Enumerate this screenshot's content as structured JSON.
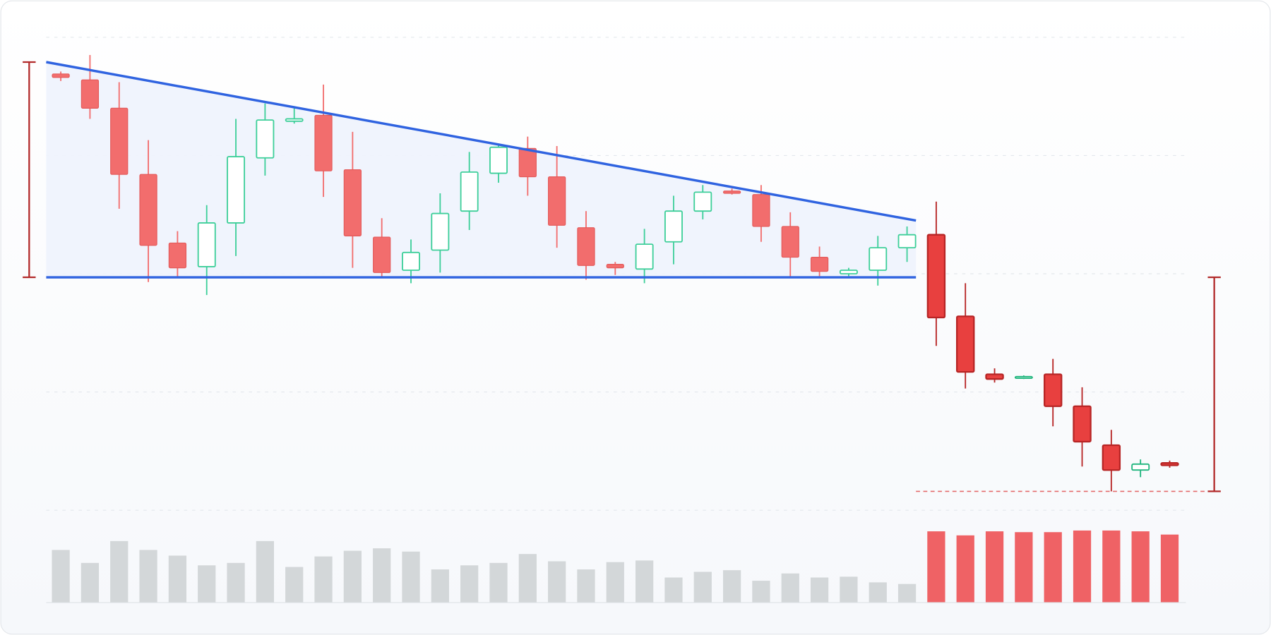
{
  "chart_data": {
    "type": "candlestick",
    "open": [
      369,
      364,
      340,
      284,
      226,
      206,
      243,
      298,
      329,
      334,
      288,
      231,
      203,
      220,
      253,
      285,
      306,
      282,
      239,
      208,
      204,
      227,
      253,
      270,
      267,
      240,
      214,
      200,
      203,
      222,
      233,
      164,
      115,
      112,
      115,
      88,
      55,
      34,
      40
    ],
    "high": [
      371,
      385,
      362,
      313,
      236,
      258,
      331,
      344,
      340,
      360,
      320,
      247,
      229,
      268,
      303,
      310,
      316,
      308,
      253,
      210,
      238,
      266,
      275,
      272,
      275,
      252,
      223,
      205,
      232,
      240,
      261,
      192,
      120,
      114,
      128,
      104,
      68,
      43,
      42
    ],
    "low": [
      363,
      331,
      255,
      193,
      197,
      182,
      215,
      283,
      327,
      265,
      205,
      197,
      192,
      201,
      237,
      277,
      266,
      222,
      195,
      199,
      192,
      208,
      246,
      267,
      227,
      197,
      198,
      198,
      190,
      210,
      139,
      103,
      108,
      111,
      71,
      37,
      16,
      28,
      36
    ],
    "close": [
      366,
      340,
      284,
      224,
      205,
      243,
      299,
      330,
      331,
      287,
      232,
      201,
      218,
      251,
      286,
      307,
      282,
      241,
      207,
      205,
      225,
      253,
      269,
      268,
      240,
      214,
      202,
      203,
      222,
      233,
      163,
      117,
      111,
      113,
      88,
      58,
      34,
      39,
      38
    ],
    "volume": [
      65,
      49,
      76,
      65,
      58,
      46,
      49,
      76,
      44,
      57,
      64,
      67,
      63,
      41,
      46,
      49,
      60,
      51,
      41,
      50,
      52,
      31,
      38,
      40,
      27,
      36,
      31,
      32,
      25,
      23,
      88,
      83,
      88,
      87,
      87,
      89,
      89,
      88,
      84
    ],
    "ylim": [
      0,
      400
    ],
    "yticks": [
      0,
      100,
      200,
      300,
      400
    ],
    "vlim": [
      0,
      100
    ],
    "grid": true,
    "resistance": [
      379,
      245
    ],
    "support": 197,
    "target": 16,
    "breakout_index": 30,
    "colors": {
      "up": "#3ecf9a",
      "down": "#f26d6d",
      "up_breakout": "#1fb57d",
      "down_breakout": "#e8403f",
      "volume": "#d3d7d9",
      "volume_breakout": "#ef6265",
      "trend": "#2f63e0",
      "bracket": "#b22a2a",
      "zone": "#eef3fd"
    }
  }
}
